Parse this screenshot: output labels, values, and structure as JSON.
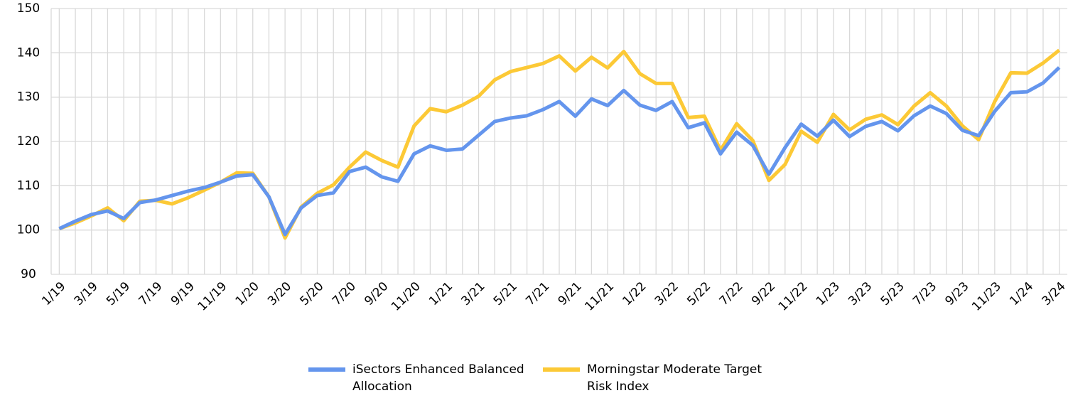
{
  "chart_data": {
    "type": "line",
    "categories": [
      "1/19",
      null,
      "3/19",
      null,
      "5/19",
      null,
      "7/19",
      null,
      "9/19",
      null,
      "11/19",
      null,
      "1/20",
      null,
      "3/20",
      null,
      "5/20",
      null,
      "7/20",
      null,
      "9/20",
      null,
      "11/20",
      null,
      "1/21",
      null,
      "3/21",
      null,
      "5/21",
      null,
      "7/21",
      null,
      "9/21",
      null,
      "11/21",
      null,
      "1/22",
      null,
      "3/22",
      null,
      "5/22",
      null,
      "7/22",
      null,
      "9/22",
      null,
      "11/22",
      null,
      "1/23",
      null,
      "3/23",
      null,
      "5/23",
      null,
      "7/23",
      null,
      "9/23",
      null,
      "11/23",
      null,
      "1/24",
      null,
      "3/24"
    ],
    "series": [
      {
        "name": "iSectors Enhanced Balanced Allocation",
        "color": "#6495ed",
        "values": [
          100.3,
          102.0,
          103.5,
          104.3,
          102.6,
          106.2,
          106.8,
          107.8,
          108.8,
          109.6,
          110.8,
          112.2,
          112.5,
          107.5,
          99.0,
          105.0,
          107.8,
          108.4,
          113.2,
          114.2,
          112.0,
          111.0,
          117.2,
          119.0,
          118.0,
          118.3,
          121.4,
          124.5,
          125.3,
          125.8,
          127.2,
          129.0,
          125.7,
          129.6,
          128.1,
          131.5,
          128.2,
          127.0,
          129.0,
          123.1,
          124.2,
          117.2,
          122.1,
          119.1,
          112.6,
          118.6,
          123.9,
          121.2,
          124.8,
          121.1,
          123.4,
          124.5,
          122.4,
          125.8,
          128.0,
          126.3,
          122.5,
          121.3,
          126.8,
          131.0,
          131.2,
          133.2,
          136.7
        ]
      },
      {
        "name": "Morningstar Moderate Target Risk Index",
        "color": "#fcc936",
        "values": [
          100.3,
          101.6,
          103.2,
          105.0,
          102.1,
          106.5,
          106.7,
          105.9,
          107.3,
          109.0,
          110.8,
          112.9,
          112.8,
          107.5,
          98.2,
          105.2,
          108.3,
          110.2,
          114.2,
          117.6,
          115.7,
          114.2,
          123.5,
          127.4,
          126.7,
          128.2,
          130.2,
          133.9,
          135.8,
          136.7,
          137.6,
          139.3,
          135.9,
          139.0,
          136.6,
          140.3,
          135.3,
          133.1,
          133.1,
          125.4,
          125.7,
          118.0,
          124.0,
          120.2,
          111.2,
          114.8,
          122.3,
          119.8,
          126.1,
          122.6,
          125.0,
          126.0,
          123.8,
          128.0,
          131.0,
          128.0,
          123.5,
          120.4,
          129.0,
          135.5,
          135.4,
          137.7,
          140.6
        ]
      }
    ],
    "ylim": [
      90,
      150
    ],
    "yticks": [
      90,
      100,
      110,
      120,
      130,
      140,
      150
    ],
    "grid": true
  }
}
